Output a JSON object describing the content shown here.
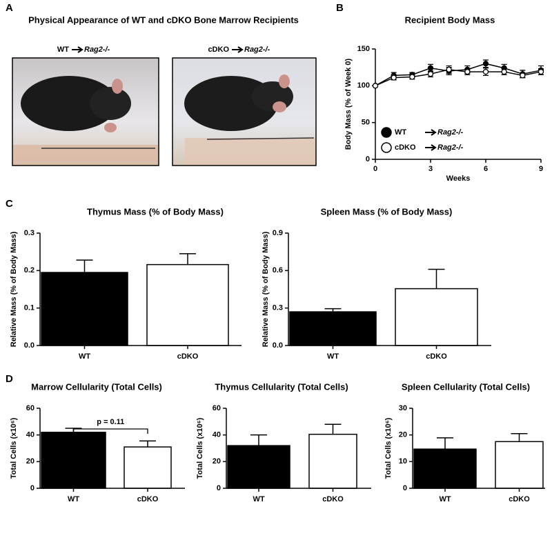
{
  "panel_labels": [
    "A",
    "B",
    "C",
    "D"
  ],
  "photos": {
    "title": "Physical Appearance of WT and cDKO Bone Marrow Recipients",
    "images": [
      {
        "donor": "WT",
        "recipient": "Rag2-/-"
      },
      {
        "donor": "cDKO",
        "recipient": "Rag2-/-"
      }
    ]
  },
  "chart_data": [
    {
      "type": "line",
      "title": "Recipient Body Mass",
      "x_label": "Weeks",
      "y_label": "Body Mass (% of Week 0)",
      "x": [
        0,
        1,
        2,
        3,
        4,
        5,
        6,
        7,
        8,
        9
      ],
      "xlim": [
        0,
        9
      ],
      "xticks": [
        0,
        3,
        6,
        9
      ],
      "ylim": [
        0,
        150
      ],
      "yticks": [
        0,
        50,
        100,
        150
      ],
      "series": [
        {
          "name": "WT",
          "recipient": "Rag2-/-",
          "color": "#000000",
          "values": [
            100,
            114,
            115,
            124,
            120,
            122,
            130,
            124,
            116,
            121
          ],
          "errors": [
            0,
            4,
            3,
            5,
            5,
            5,
            5,
            5,
            5,
            6
          ]
        },
        {
          "name": "cDKO",
          "recipient": "Rag2-/-",
          "color": "#ffffff",
          "values": [
            100,
            111,
            112,
            116,
            122,
            119,
            119,
            119,
            114,
            119
          ],
          "errors": [
            0,
            3,
            3,
            4,
            5,
            4,
            5,
            4,
            3,
            4
          ]
        }
      ]
    },
    {
      "type": "bar",
      "title": "Thymus Mass (% of Body Mass)",
      "y_label": "Relative Mass (% of Body Mass)",
      "categories": [
        "WT",
        "cDKO"
      ],
      "values": [
        0.195,
        0.216
      ],
      "errors": [
        0.033,
        0.029
      ],
      "colors": [
        "#000000",
        "#ffffff"
      ],
      "ylim": [
        0,
        0.3
      ],
      "yticks": [
        {
          "value": 0,
          "label": "0.0"
        },
        0.1,
        0.2,
        0.3
      ]
    },
    {
      "type": "bar",
      "title": "Spleen Mass (% of Body Mass)",
      "y_label": "Relative Mass (% of Body Mass)",
      "categories": [
        "WT",
        "cDKO"
      ],
      "values": [
        0.27,
        0.455
      ],
      "errors": [
        0.025,
        0.155
      ],
      "colors": [
        "#000000",
        "#ffffff"
      ],
      "ylim": [
        0,
        0.9
      ],
      "yticks": [
        {
          "value": 0,
          "label": "0.0"
        },
        0.3,
        0.6,
        0.9
      ]
    },
    {
      "type": "bar",
      "title": "Marrow Cellularity (Total Cells)",
      "y_label": "Total Cells (x10⁶)",
      "categories": [
        "WT",
        "cDKO"
      ],
      "values": [
        42,
        31
      ],
      "errors": [
        3,
        4.5
      ],
      "colors": [
        "#000000",
        "#ffffff"
      ],
      "ylim": [
        0,
        60
      ],
      "yticks": [
        0,
        20,
        40,
        60
      ],
      "annotation": "p = 0.11"
    },
    {
      "type": "bar",
      "title": "Thymus Cellularity (Total Cells)",
      "y_label": "Total Cells (x10⁶)",
      "categories": [
        "WT",
        "cDKO"
      ],
      "values": [
        32,
        40.5
      ],
      "errors": [
        8,
        7.5
      ],
      "colors": [
        "#000000",
        "#ffffff"
      ],
      "ylim": [
        0,
        60
      ],
      "yticks": [
        0,
        20,
        40,
        60
      ]
    },
    {
      "type": "bar",
      "title": "Spleen Cellularity (Total Cells)",
      "y_label": "Total Cells (x10⁶)",
      "categories": [
        "WT",
        "cDKO"
      ],
      "values": [
        14.7,
        17.5
      ],
      "errors": [
        4.2,
        3
      ],
      "colors": [
        "#000000",
        "#ffffff"
      ],
      "ylim": [
        0,
        30
      ],
      "yticks": [
        0,
        10,
        20,
        30
      ]
    }
  ]
}
